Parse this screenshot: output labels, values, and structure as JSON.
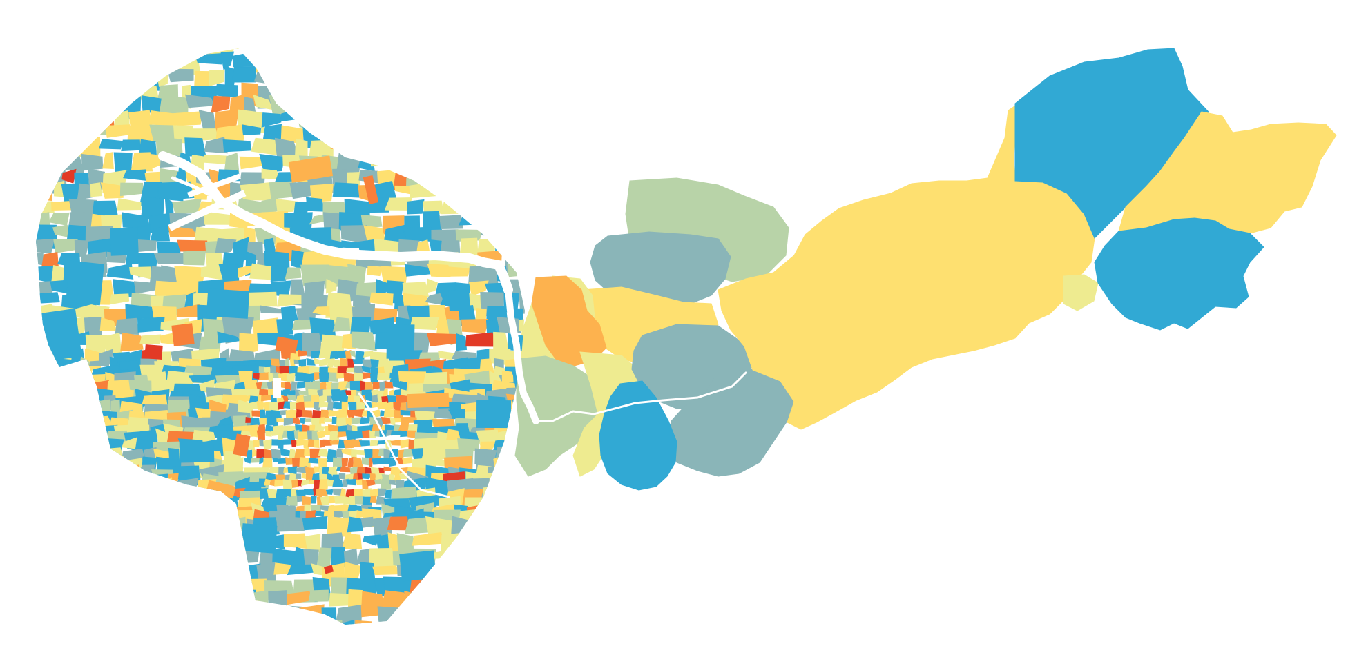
{
  "map": {
    "type": "choropleth",
    "background": "#ffffff",
    "palette": {
      "class_1": "#31a9d4",
      "class_2": "#8ab5b8",
      "class_3": "#b8d3a8",
      "class_4": "#eeeb90",
      "class_5": "#fee070",
      "class_6": "#fdb24e",
      "class_7": "#f77f3a",
      "class_8": "#e23a26",
      "river": "#ffffff"
    },
    "legend": [],
    "labels": []
  }
}
